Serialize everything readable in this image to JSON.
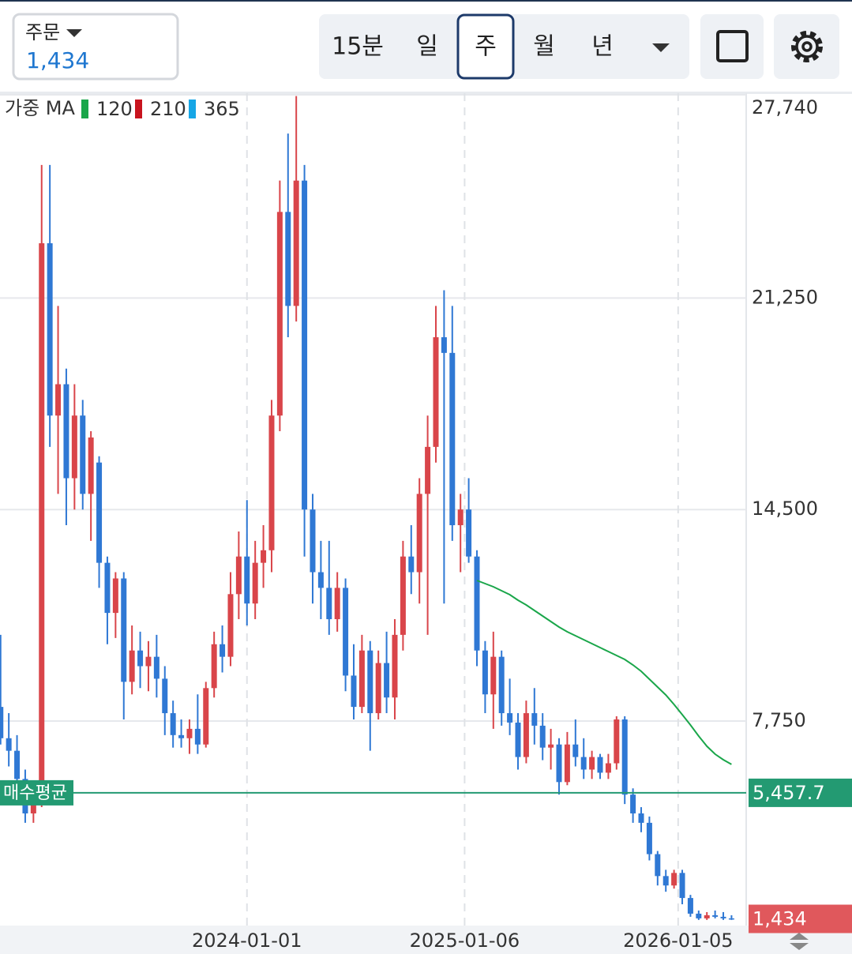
{
  "header": {
    "order_label": "주문",
    "price": "1,434",
    "tabs": [
      "15분",
      "일",
      "주",
      "월",
      "년"
    ],
    "selected_tab": 2
  },
  "chart_data": {
    "type": "candlestick",
    "legend_title": "가중 MA",
    "candles": {
      "up_color": "#d9454a",
      "down_color": "#2f78d4",
      "x": [
        "2022-11-07",
        "2022-11-21",
        "2022-12-05",
        "2022-12-19",
        "2023-01-02",
        "2023-01-16",
        "2023-01-30",
        "2023-02-13",
        "2023-02-27",
        "2023-03-13",
        "2023-03-27",
        "2023-04-10",
        "2023-04-24",
        "2023-05-08",
        "2023-05-22",
        "2023-06-05",
        "2023-06-19",
        "2023-07-03",
        "2023-07-17",
        "2023-07-31",
        "2023-08-14",
        "2023-08-28",
        "2023-09-11",
        "2023-09-25",
        "2023-10-09",
        "2023-10-23",
        "2023-11-06",
        "2023-11-20",
        "2023-12-04",
        "2023-12-18",
        "2024-01-01",
        "2024-01-15",
        "2024-01-29",
        "2024-02-12",
        "2024-02-26",
        "2024-03-11",
        "2024-03-25",
        "2024-04-08",
        "2024-04-22",
        "2024-05-06",
        "2024-05-20",
        "2024-06-03",
        "2024-06-17",
        "2024-07-01",
        "2024-07-15",
        "2024-07-29",
        "2024-08-12",
        "2024-08-26",
        "2024-09-09",
        "2024-09-23",
        "2024-10-07",
        "2024-10-21",
        "2024-11-04",
        "2024-11-18",
        "2024-12-02",
        "2024-12-16",
        "2024-12-30",
        "2025-01-13",
        "2025-01-27",
        "2025-02-10",
        "2025-02-24",
        "2025-03-10",
        "2025-03-24",
        "2025-04-07",
        "2025-04-21",
        "2025-05-05",
        "2025-05-19",
        "2025-06-02",
        "2025-06-16",
        "2025-06-30",
        "2025-07-14",
        "2025-07-28",
        "2025-08-11",
        "2025-08-25",
        "2025-09-08",
        "2025-09-22",
        "2025-10-06",
        "2025-10-20",
        "2025-11-03",
        "2025-11-17",
        "2025-12-01",
        "2025-12-15",
        "2025-12-29",
        "2026-01-12",
        "2026-01-26",
        "2026-02-09",
        "2026-02-23",
        "2026-03-09",
        "2026-03-23",
        "2026-04-06"
      ],
      "ohlc": [
        [
          8200,
          10500,
          7000,
          7200
        ],
        [
          7200,
          8000,
          6300,
          6800
        ],
        [
          6800,
          7300,
          5600,
          5900
        ],
        [
          5900,
          6200,
          4500,
          4800
        ],
        [
          4800,
          5200,
          4500,
          5100
        ],
        [
          5100,
          25500,
          5000,
          23000
        ],
        [
          23000,
          25500,
          16500,
          17500
        ],
        [
          17500,
          21000,
          15000,
          18500
        ],
        [
          18500,
          19000,
          14000,
          15500
        ],
        [
          15500,
          18500,
          14500,
          17500
        ],
        [
          17500,
          18000,
          14500,
          15000
        ],
        [
          15000,
          17000,
          13500,
          16800
        ],
        [
          16000,
          16200,
          12000,
          12800
        ],
        [
          12800,
          13000,
          10200,
          11200
        ],
        [
          11200,
          12500,
          10400,
          12300
        ],
        [
          12300,
          12500,
          7800,
          9000
        ],
        [
          9000,
          10800,
          8600,
          10000
        ],
        [
          10000,
          10600,
          8800,
          9500
        ],
        [
          9500,
          10300,
          8700,
          9800
        ],
        [
          9800,
          10500,
          8500,
          9100
        ],
        [
          9100,
          9500,
          7300,
          8000
        ],
        [
          8000,
          8400,
          6900,
          7300
        ],
        [
          7300,
          7800,
          6900,
          7200
        ],
        [
          7200,
          7800,
          6700,
          7500
        ],
        [
          7500,
          8600,
          6700,
          7000
        ],
        [
          7000,
          9000,
          6900,
          8800
        ],
        [
          8800,
          10600,
          8500,
          10200
        ],
        [
          10200,
          10800,
          9300,
          9800
        ],
        [
          9800,
          12500,
          9500,
          11800
        ],
        [
          11800,
          13800,
          11000,
          13000
        ],
        [
          13000,
          14800,
          10800,
          11500
        ],
        [
          11500,
          13500,
          11000,
          12800
        ],
        [
          12800,
          14000,
          12000,
          13200
        ],
        [
          13200,
          18000,
          12500,
          17500
        ],
        [
          17500,
          25000,
          17000,
          24000
        ],
        [
          24000,
          26500,
          20000,
          21000
        ],
        [
          21000,
          27700,
          20500,
          25000
        ],
        [
          25000,
          25500,
          13000,
          14500
        ],
        [
          14500,
          15000,
          11500,
          12500
        ],
        [
          12500,
          13500,
          11000,
          12000
        ],
        [
          12000,
          13500,
          10500,
          11000
        ],
        [
          11000,
          12500,
          10600,
          12000
        ],
        [
          12000,
          12300,
          8700,
          9200
        ],
        [
          9200,
          10200,
          7800,
          8200
        ],
        [
          8200,
          10500,
          8000,
          10000
        ],
        [
          10000,
          10300,
          6800,
          8000
        ],
        [
          8000,
          10000,
          7800,
          9600
        ],
        [
          9600,
          10600,
          8000,
          8500
        ],
        [
          8500,
          11000,
          7800,
          10500
        ],
        [
          10500,
          13500,
          10000,
          13000
        ],
        [
          13000,
          14000,
          11800,
          12500
        ],
        [
          12500,
          15500,
          11500,
          15000
        ],
        [
          15000,
          17500,
          10500,
          16500
        ],
        [
          16500,
          21000,
          16000,
          20000
        ],
        [
          20000,
          21500,
          11500,
          19500
        ],
        [
          19500,
          21000,
          13500,
          14000
        ],
        [
          14000,
          15000,
          12500,
          14500
        ],
        [
          14500,
          15500,
          12800,
          13000
        ],
        [
          13000,
          13200,
          9500,
          10000
        ],
        [
          10000,
          10300,
          8000,
          8600
        ],
        [
          8600,
          10600,
          7500,
          9800
        ],
        [
          9800,
          10000,
          7600,
          8000
        ],
        [
          8000,
          9100,
          7300,
          7700
        ],
        [
          7700,
          8000,
          6200,
          6600
        ],
        [
          6600,
          8400,
          6400,
          8000
        ],
        [
          8000,
          8800,
          7000,
          7600
        ],
        [
          7600,
          8000,
          6500,
          6900
        ],
        [
          6900,
          7500,
          6200,
          7000
        ],
        [
          7000,
          7200,
          5400,
          5800
        ],
        [
          5800,
          7400,
          5700,
          7000
        ],
        [
          7000,
          7800,
          6300,
          6600
        ],
        [
          6600,
          7200,
          5900,
          6200
        ],
        [
          6200,
          6800,
          5900,
          6600
        ],
        [
          6600,
          6700,
          5900,
          6100
        ],
        [
          6100,
          6700,
          5900,
          6400
        ],
        [
          6400,
          7900,
          6200,
          7800
        ],
        [
          7800,
          7900,
          5100,
          5400
        ],
        [
          5400,
          5600,
          4500,
          4800
        ],
        [
          4800,
          5000,
          4200,
          4500
        ],
        [
          4500,
          4700,
          3300,
          3500
        ],
        [
          3500,
          3600,
          2500,
          2800
        ],
        [
          2800,
          3000,
          2300,
          2500
        ],
        [
          2500,
          3000,
          2400,
          2900
        ],
        [
          2900,
          3000,
          1900,
          2100
        ],
        [
          2100,
          2200,
          1500,
          1600
        ],
        [
          1600,
          1700,
          1400,
          1450
        ],
        [
          1450,
          1650,
          1400,
          1550
        ],
        [
          1550,
          1700,
          1450,
          1500
        ],
        [
          1500,
          1650,
          1400,
          1450
        ],
        [
          1450,
          1550,
          1400,
          1434
        ]
      ]
    },
    "moving_averages": [
      {
        "name": "120",
        "color": "#1aa64a",
        "values": [
          null,
          null,
          null,
          null,
          null,
          null,
          null,
          null,
          null,
          null,
          null,
          null,
          null,
          null,
          null,
          null,
          null,
          null,
          null,
          null,
          null,
          null,
          null,
          null,
          null,
          null,
          null,
          null,
          null,
          null,
          null,
          null,
          null,
          null,
          null,
          null,
          null,
          null,
          null,
          null,
          null,
          null,
          null,
          null,
          null,
          null,
          null,
          null,
          null,
          null,
          null,
          null,
          null,
          null,
          null,
          null,
          null,
          null,
          12236,
          12135,
          12034,
          11908,
          11782,
          11606,
          11454,
          11278,
          11102,
          10925,
          10749,
          10598,
          10472,
          10346,
          10220,
          10094,
          9968,
          9842,
          9716,
          9539,
          9338,
          9086,
          8834,
          8582,
          8279,
          7952,
          7624,
          7271,
          6944,
          6692,
          6515,
          6364
        ]
      },
      {
        "name": "210",
        "color": "#c8141e"
      },
      {
        "name": "365",
        "color": "#16a6e6"
      }
    ],
    "reference_line": {
      "label": "매수평균",
      "value": 5457.7,
      "value_label": "5,457.7",
      "color": "#239a72"
    },
    "last_price": {
      "value": 1434,
      "label": "1,434",
      "color": "#e0585c"
    },
    "xlim": [
      "2022-11-06",
      "2026-05-01"
    ],
    "xticks": [
      "2024-01-01",
      "2025-01-06",
      "2026-01-05"
    ],
    "ylim": [
      1220,
      27790
    ],
    "yticks": [
      {
        "value": 7750,
        "label": "7,750"
      },
      {
        "value": 14500,
        "label": "14,500"
      },
      {
        "value": 21250,
        "label": "21,250"
      },
      {
        "value": 27740,
        "label": "27,740"
      }
    ],
    "grid": true
  }
}
